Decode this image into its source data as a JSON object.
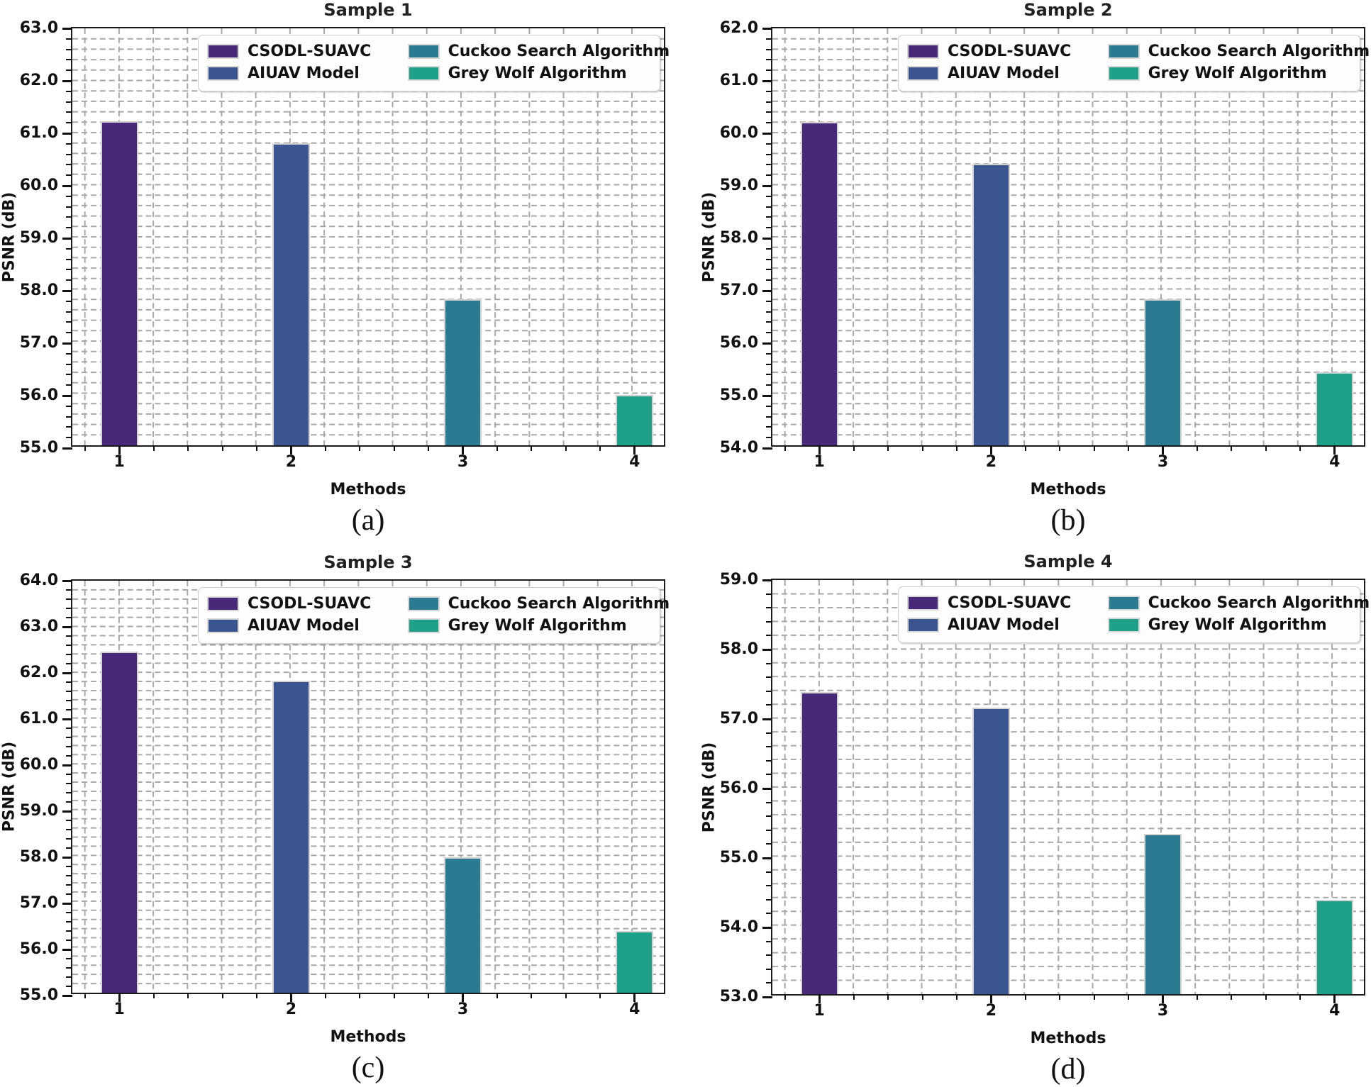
{
  "figure": {
    "background": "#ffffff",
    "grid_color": "#a8a8a8",
    "spine_color": "#1b1b1b",
    "legend": {
      "position": "upper right",
      "entries": [
        {
          "label": "CSODL-SUAVC",
          "color": "#482878"
        },
        {
          "label": "AIUAV Model",
          "color": "#3a5590"
        },
        {
          "label": "Cuckoo Search Algorithm",
          "color": "#2a7a91"
        },
        {
          "label": "Grey Wolf Algorithm",
          "color": "#1fa189"
        }
      ]
    }
  },
  "chart_data": [
    {
      "type": "bar",
      "title": "Sample 1",
      "caption": "(a)",
      "xlabel": "Methods",
      "ylabel": "PSNR (dB)",
      "categories": [
        "1",
        "2",
        "3",
        "4"
      ],
      "values": [
        61.22,
        60.79,
        57.8,
        55.97
      ],
      "ylim": [
        55.0,
        63.0
      ],
      "ytick_step": 1.0,
      "minor_step": 0.2,
      "grid": "dashed, both axes, minor",
      "legend_position": "upper right"
    },
    {
      "type": "bar",
      "title": "Sample 2",
      "caption": "(b)",
      "xlabel": "Methods",
      "ylabel": "PSNR (dB)",
      "categories": [
        "1",
        "2",
        "3",
        "4"
      ],
      "values": [
        60.2,
        59.4,
        56.8,
        55.4
      ],
      "ylim": [
        54.0,
        62.0
      ],
      "ytick_step": 1.0,
      "minor_step": 0.2,
      "grid": "dashed, both axes, minor",
      "legend_position": "upper right"
    },
    {
      "type": "bar",
      "title": "Sample 3",
      "caption": "(c)",
      "xlabel": "Methods",
      "ylabel": "PSNR (dB)",
      "categories": [
        "1",
        "2",
        "3",
        "4"
      ],
      "values": [
        62.45,
        61.81,
        57.96,
        56.35
      ],
      "ylim": [
        55.0,
        64.0
      ],
      "ytick_step": 1.0,
      "minor_step": 0.2,
      "grid": "dashed, both axes, minor",
      "legend_position": "upper right"
    },
    {
      "type": "bar",
      "title": "Sample 4",
      "caption": "(d)",
      "xlabel": "Methods",
      "ylabel": "PSNR (dB)",
      "categories": [
        "1",
        "2",
        "3",
        "4"
      ],
      "values": [
        57.38,
        57.15,
        55.32,
        54.37
      ],
      "ylim": [
        53.0,
        59.0
      ],
      "ytick_step": 1.0,
      "minor_step": 0.2,
      "grid": "dashed, both axes, minor",
      "legend_position": "upper right"
    }
  ]
}
